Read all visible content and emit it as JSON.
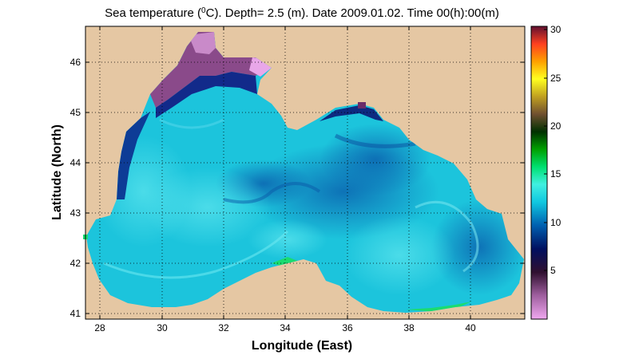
{
  "map": {
    "title_prefix": "Sea temperature (",
    "title_sup": "0",
    "title_suffix": "C). Depth=  2.5 (m). Date 2009.01.02. Time 00(h):00(m)",
    "xlabel": "Longitude (East)",
    "ylabel": "Latitude (North)",
    "x_ticks": [
      "28",
      "30",
      "32",
      "34",
      "36",
      "38",
      "40"
    ],
    "y_ticks": [
      "41",
      "42",
      "43",
      "44",
      "45",
      "46"
    ],
    "land_color": "#e5c7a3",
    "water_color": "#19c3d8"
  },
  "colorbar": {
    "ticks": [
      "30",
      "25",
      "20",
      "15",
      "10",
      "5"
    ]
  }
}
